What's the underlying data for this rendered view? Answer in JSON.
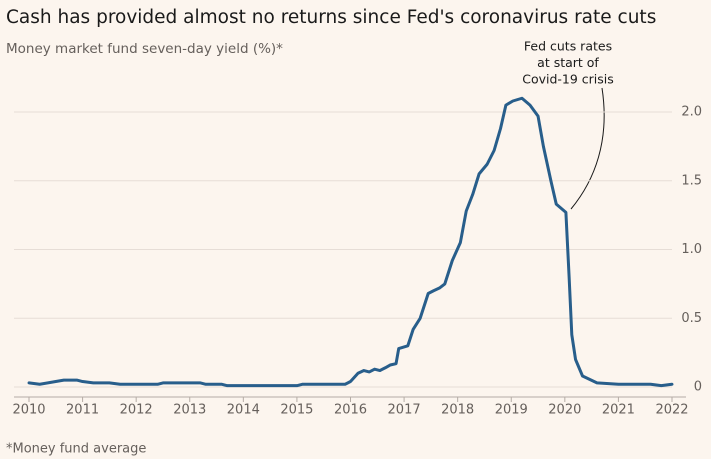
{
  "chart_data": {
    "type": "line",
    "title": "Cash has provided almost no returns since Fed's coronavirus rate cuts",
    "subtitle": "Money market fund seven-day yield (%)*",
    "footnote": "*Money fund average",
    "annotation": [
      "Fed cuts rates",
      "at start of",
      "Covid-19 crisis"
    ],
    "x": [
      2010.0,
      2010.2,
      2010.5,
      2010.65,
      2010.9,
      2011.0,
      2011.2,
      2011.5,
      2011.7,
      2012.0,
      2012.4,
      2012.5,
      2013.0,
      2013.2,
      2013.3,
      2013.6,
      2013.7,
      2014.0,
      2015.0,
      2015.1,
      2015.9,
      2016.0,
      2016.14,
      2016.25,
      2016.35,
      2016.45,
      2016.55,
      2016.65,
      2016.74,
      2016.85,
      2016.9,
      2017.07,
      2017.17,
      2017.3,
      2017.45,
      2017.55,
      2017.66,
      2017.76,
      2017.9,
      2018.05,
      2018.16,
      2018.28,
      2018.4,
      2018.55,
      2018.68,
      2018.8,
      2018.9,
      2019.03,
      2019.2,
      2019.35,
      2019.5,
      2019.6,
      2019.74,
      2019.84,
      2020.02,
      2020.08,
      2020.13,
      2020.2,
      2020.33,
      2020.6,
      2021.0,
      2021.6,
      2021.8,
      2022.0
    ],
    "values": [
      0.03,
      0.02,
      0.04,
      0.05,
      0.05,
      0.04,
      0.03,
      0.03,
      0.02,
      0.02,
      0.02,
      0.03,
      0.03,
      0.03,
      0.02,
      0.02,
      0.01,
      0.01,
      0.01,
      0.02,
      0.02,
      0.04,
      0.1,
      0.12,
      0.11,
      0.13,
      0.12,
      0.14,
      0.16,
      0.17,
      0.28,
      0.3,
      0.42,
      0.5,
      0.68,
      0.7,
      0.72,
      0.75,
      0.92,
      1.05,
      1.28,
      1.4,
      1.55,
      1.62,
      1.72,
      1.88,
      2.05,
      2.08,
      2.1,
      2.05,
      1.97,
      1.75,
      1.5,
      1.33,
      1.27,
      0.8,
      0.38,
      0.2,
      0.08,
      0.03,
      0.02,
      0.02,
      0.01,
      0.02
    ],
    "color": "#285e8b",
    "xlim": [
      2010,
      2022
    ],
    "ylim": [
      -0.05,
      2.2
    ],
    "xticks": [
      2010,
      2011,
      2012,
      2013,
      2014,
      2015,
      2016,
      2017,
      2018,
      2019,
      2020,
      2021,
      2022
    ],
    "yticks": [
      0,
      0.5,
      {
        "value": 1,
        "label": "1.0"
      },
      1.5,
      {
        "value": 2,
        "label": "2.0"
      }
    ],
    "grid": true
  }
}
